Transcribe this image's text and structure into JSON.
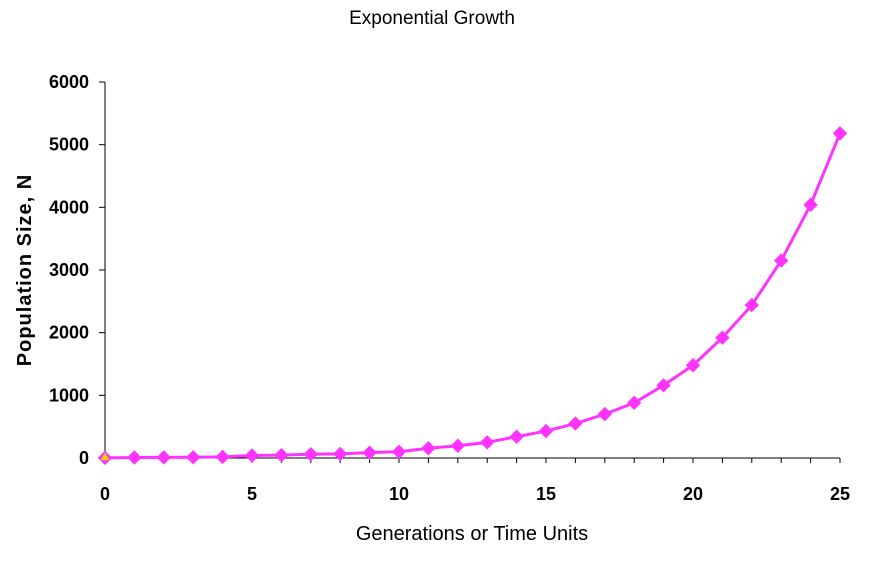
{
  "chart_data": {
    "type": "line",
    "title": "Exponential Growth",
    "xlabel": "Generations or Time Units",
    "ylabel": "Population Size, N",
    "xlim": [
      0,
      25
    ],
    "ylim": [
      0,
      6000
    ],
    "xticks": [
      0,
      5,
      10,
      15,
      20,
      25
    ],
    "yticks": [
      0,
      1000,
      2000,
      3000,
      4000,
      5000,
      6000
    ],
    "grid": false,
    "series": [
      {
        "color": "#ff33ff",
        "marker": "diamond",
        "x": [
          0,
          1,
          2,
          3,
          4,
          5,
          6,
          7,
          8,
          9,
          10,
          11,
          12,
          13,
          14,
          15,
          16,
          17,
          18,
          19,
          20,
          21,
          22,
          23,
          24,
          25
        ],
        "values": [
          2,
          8,
          10,
          12,
          18,
          40,
          45,
          60,
          65,
          85,
          100,
          155,
          195,
          250,
          340,
          430,
          550,
          700,
          880,
          1160,
          1480,
          1920,
          2440,
          3150,
          4040,
          5180
        ]
      }
    ],
    "start_marker": {
      "x": 0,
      "value": 0,
      "color": "#ffd700",
      "shape": "triangle"
    }
  }
}
